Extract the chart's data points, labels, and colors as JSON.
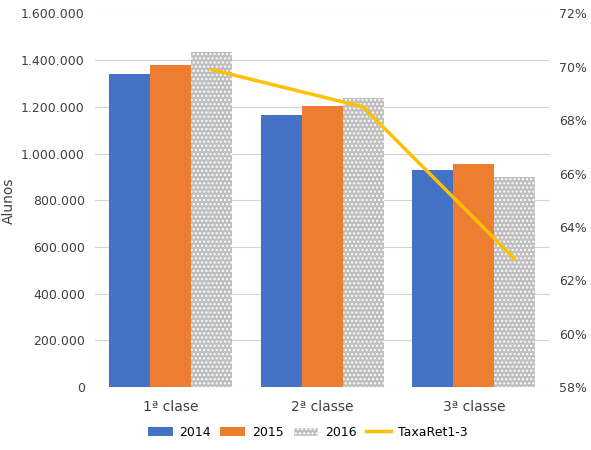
{
  "categories": [
    "1ª clase",
    "2ª classe",
    "3ª classe"
  ],
  "bar_data": {
    "2014": [
      1340000,
      1165000,
      930000
    ],
    "2015": [
      1380000,
      1205000,
      955000
    ],
    "2016": [
      1435000,
      1240000,
      900000
    ]
  },
  "line_data": {
    "TaxaRet1-3": [
      0.699,
      0.685,
      0.628
    ]
  },
  "bar_colors": {
    "2014": "#4472C4",
    "2015": "#ED7D31",
    "2016": "#BFBFBF"
  },
  "line_color": "#FFC000",
  "ylim_left": [
    0,
    1600000
  ],
  "ylim_right": [
    0.58,
    0.72
  ],
  "yticks_left": [
    0,
    200000,
    400000,
    600000,
    800000,
    1000000,
    1200000,
    1400000,
    1600000
  ],
  "yticks_right": [
    0.58,
    0.6,
    0.62,
    0.64,
    0.66,
    0.68,
    0.7,
    0.72
  ],
  "ylabel_left": "Alunos",
  "legend_labels": [
    "2014",
    "2015",
    "2016",
    "TaxaRet1-3"
  ],
  "background_color": "#FFFFFF",
  "grid_color": "#D3D3D3",
  "bar_width": 0.27,
  "figsize": [
    5.91,
    4.5
  ],
  "dpi": 100
}
